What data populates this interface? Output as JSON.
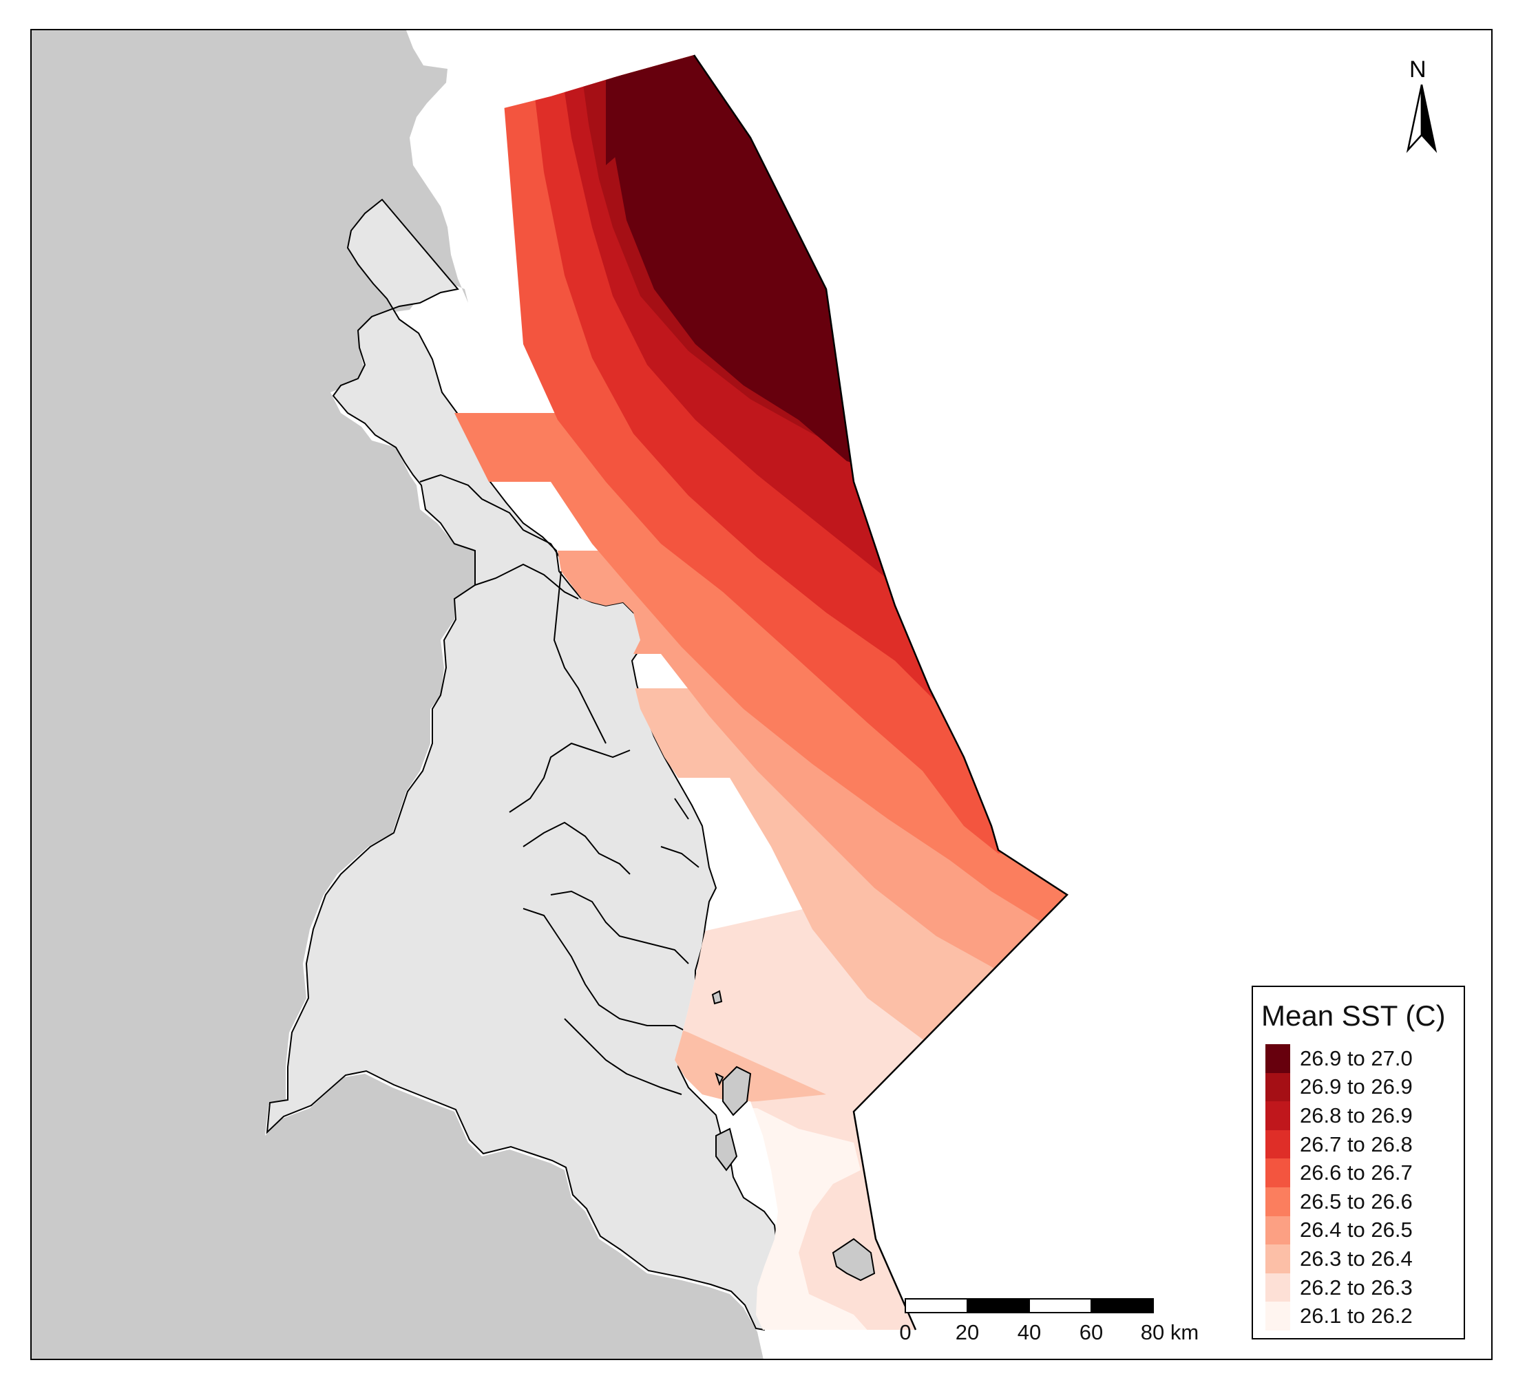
{
  "map": {
    "legend": {
      "title": "Mean SST (C)",
      "items": [
        {
          "label": "26.9 to 27.0",
          "color": "#67000d"
        },
        {
          "label": "26.9 to 26.9",
          "color": "#a50f15"
        },
        {
          "label": "26.8 to 26.9",
          "color": "#c0171c"
        },
        {
          "label": "26.7 to 26.8",
          "color": "#df2e28"
        },
        {
          "label": "26.6 to 26.7",
          "color": "#f3553f"
        },
        {
          "label": "26.5 to 26.6",
          "color": "#fb7e5e"
        },
        {
          "label": "26.4 to 26.5",
          "color": "#fca083"
        },
        {
          "label": "26.3 to 26.4",
          "color": "#fcbfa7"
        },
        {
          "label": "26.2 to 26.3",
          "color": "#fde0d6"
        },
        {
          "label": "26.1 to 26.2",
          "color": "#fff5f0"
        }
      ]
    },
    "north_arrow": {
      "label": "N"
    },
    "scale_bar": {
      "ticks": [
        "0",
        "20",
        "40",
        "60",
        "80 km"
      ]
    },
    "colors": {
      "land_outer": "#cacaca",
      "land_catchments": "#e6e6e6",
      "ocean": "#ffffff"
    }
  }
}
